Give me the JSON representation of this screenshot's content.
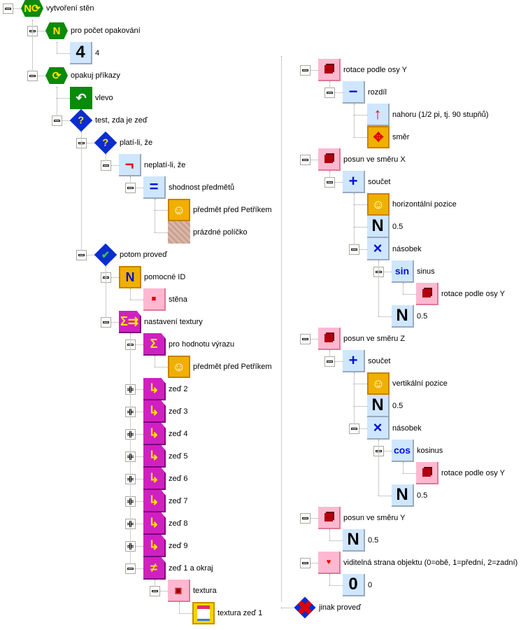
{
  "left_tree": [
    {
      "depth": 0,
      "label": "vytvoření stěn",
      "expander": "minus",
      "icon": "repeat-n-icon",
      "style": "hex",
      "glyph": "N⟳"
    },
    {
      "depth": 1,
      "label": "pro počet opakování",
      "expander": "minus",
      "icon": "number-n-icon",
      "style": "hex",
      "glyph": "N"
    },
    {
      "depth": 2,
      "label": "4",
      "expander": "none",
      "icon": "number-4-icon",
      "style": "num",
      "glyph": "4"
    },
    {
      "depth": 1,
      "label": "opakuj příkazy",
      "expander": "minus",
      "icon": "loop-icon",
      "style": "hex",
      "glyph": "⟳"
    },
    {
      "depth": 2,
      "label": "vlevo",
      "expander": "none",
      "icon": "turn-left-rabbit-icon",
      "style": "rabbitg",
      "glyph": "↶"
    },
    {
      "depth": 2,
      "label": "test, zda je zeď",
      "expander": "minus",
      "icon": "test-diamond-icon",
      "style": "diamond",
      "glyph": "?"
    },
    {
      "depth": 3,
      "label": "platí-li, že",
      "expander": "minus",
      "icon": "condition-icon",
      "style": "diamond",
      "glyph": "?"
    },
    {
      "depth": 4,
      "label": "neplatí-li, že",
      "expander": "minus",
      "icon": "negation-icon",
      "style": "lb",
      "glyph": "¬",
      "color": "#e00000"
    },
    {
      "depth": 5,
      "label": "shodnost předmětů",
      "expander": "minus",
      "icon": "equality-icon",
      "style": "lb",
      "glyph": "="
    },
    {
      "depth": 6,
      "label": "předmět před Petříkem",
      "expander": "none",
      "icon": "rabbit-object-icon",
      "style": "rabbit",
      "glyph": "☺"
    },
    {
      "depth": 6,
      "label": "prázdné políčko",
      "expander": "none",
      "icon": "empty-tile-icon",
      "style": "tile",
      "glyph": ""
    },
    {
      "depth": 3,
      "label": "potom proveď",
      "expander": "minus",
      "icon": "then-check-icon",
      "style": "diamond",
      "glyph": "✔",
      "color": "#30d030"
    },
    {
      "depth": 4,
      "label": "pomocné ID",
      "expander": "minus",
      "icon": "helper-id-icon",
      "style": "rabbit",
      "glyph": "N",
      "color": "#0010c0"
    },
    {
      "depth": 5,
      "label": "stěna",
      "expander": "none",
      "icon": "wall-icon",
      "style": "pink",
      "glyph": "■",
      "color": "#e00000"
    },
    {
      "depth": 4,
      "label": "nastavení textury",
      "expander": "minus",
      "icon": "texture-setting-icon",
      "style": "mag",
      "glyph": "Σ⇉"
    },
    {
      "depth": 5,
      "label": "pro hodnotu výrazu",
      "expander": "minus",
      "icon": "expression-value-icon",
      "style": "mag",
      "glyph": "Σ"
    },
    {
      "depth": 6,
      "label": "předmět před Petříkem",
      "expander": "none",
      "icon": "rabbit-object-icon",
      "style": "rabbit",
      "glyph": "☺"
    },
    {
      "depth": 5,
      "label": "zeď 2",
      "expander": "plus",
      "icon": "branch-arrow-icon",
      "style": "mag",
      "glyph": "↳"
    },
    {
      "depth": 5,
      "label": "zeď 3",
      "expander": "plus",
      "icon": "branch-arrow-icon",
      "style": "mag",
      "glyph": "↳"
    },
    {
      "depth": 5,
      "label": "zeď 4",
      "expander": "plus",
      "icon": "branch-arrow-icon",
      "style": "mag",
      "glyph": "↳"
    },
    {
      "depth": 5,
      "label": "zeď 5",
      "expander": "plus",
      "icon": "branch-arrow-icon",
      "style": "mag",
      "glyph": "↳"
    },
    {
      "depth": 5,
      "label": "zeď 6",
      "expander": "plus",
      "icon": "branch-arrow-icon",
      "style": "mag",
      "glyph": "↳"
    },
    {
      "depth": 5,
      "label": "zeď 7",
      "expander": "plus",
      "icon": "branch-arrow-icon",
      "style": "mag",
      "glyph": "↳"
    },
    {
      "depth": 5,
      "label": "zeď 8",
      "expander": "plus",
      "icon": "branch-arrow-icon",
      "style": "mag",
      "glyph": "↳"
    },
    {
      "depth": 5,
      "label": "zeď 9",
      "expander": "plus",
      "icon": "branch-arrow-icon",
      "style": "mag",
      "glyph": "↳"
    },
    {
      "depth": 5,
      "label": "zeď 1 a okraj",
      "expander": "minus",
      "icon": "not-equal-branch-icon",
      "style": "mag",
      "glyph": "≠"
    },
    {
      "depth": 6,
      "label": "textura",
      "expander": "minus",
      "icon": "texture-icon",
      "style": "pink",
      "glyph": "▣",
      "color": "#a00000"
    },
    {
      "depth": 7,
      "label": "textura zeď 1",
      "expander": "none",
      "icon": "texture-wall-image-icon",
      "style": "yellow",
      "glyph": ""
    }
  ],
  "right_tree": [
    {
      "depth": 0,
      "label": "rotace podle osy Y",
      "expander": "minus",
      "icon": "rotate-y-icon",
      "style": "pink",
      "glyph": ""
    },
    {
      "depth": 1,
      "label": "rozdíl",
      "expander": "minus",
      "icon": "minus-icon",
      "style": "lb",
      "glyph": "−"
    },
    {
      "depth": 2,
      "label": "nahoru (1/2 pi, tj. 90 stupňů)",
      "expander": "none",
      "icon": "clock-up-icon",
      "style": "lb",
      "glyph": "↑",
      "color": "#e00000"
    },
    {
      "depth": 2,
      "label": "směr",
      "expander": "none",
      "icon": "direction-rabbit-icon",
      "style": "rabbit",
      "glyph": "✥",
      "color": "#e00000"
    },
    {
      "depth": 0,
      "label": "posun ve směru X",
      "expander": "minus",
      "icon": "move-x-icon",
      "style": "pink",
      "glyph": ""
    },
    {
      "depth": 1,
      "label": "součet",
      "expander": "minus",
      "icon": "plus-icon",
      "style": "lb",
      "glyph": "+"
    },
    {
      "depth": 2,
      "label": "horizontální pozice",
      "expander": "none",
      "icon": "horizontal-position-icon",
      "style": "rabbit",
      "glyph": "☺"
    },
    {
      "depth": 2,
      "label": "0.5",
      "expander": "none",
      "icon": "number-n-icon",
      "style": "num",
      "glyph": "N"
    },
    {
      "depth": 2,
      "label": "násobek",
      "expander": "minus",
      "icon": "multiply-icon",
      "style": "lb",
      "glyph": "×"
    },
    {
      "depth": 3,
      "label": "sinus",
      "expander": "minus",
      "icon": "sin-icon",
      "style": "lb",
      "glyph": "sin",
      "small": true
    },
    {
      "depth": 4,
      "label": "rotace podle osy Y",
      "expander": "none",
      "icon": "rotate-y-icon",
      "style": "pink",
      "glyph": ""
    },
    {
      "depth": 3,
      "label": "0.5",
      "expander": "none",
      "icon": "number-n-icon",
      "style": "num",
      "glyph": "N"
    },
    {
      "depth": 0,
      "label": "posun ve směru Z",
      "expander": "minus",
      "icon": "move-z-icon",
      "style": "pink",
      "glyph": ""
    },
    {
      "depth": 1,
      "label": "součet",
      "expander": "minus",
      "icon": "plus-icon",
      "style": "lb",
      "glyph": "+"
    },
    {
      "depth": 2,
      "label": "vertikální pozice",
      "expander": "none",
      "icon": "vertical-position-icon",
      "style": "rabbit",
      "glyph": "☺"
    },
    {
      "depth": 2,
      "label": "0.5",
      "expander": "none",
      "icon": "number-n-icon",
      "style": "num",
      "glyph": "N"
    },
    {
      "depth": 2,
      "label": "násobek",
      "expander": "minus",
      "icon": "multiply-icon",
      "style": "lb",
      "glyph": "×"
    },
    {
      "depth": 3,
      "label": "kosinus",
      "expander": "minus",
      "icon": "cos-icon",
      "style": "lb",
      "glyph": "cos",
      "small": true
    },
    {
      "depth": 4,
      "label": "rotace podle osy Y",
      "expander": "none",
      "icon": "rotate-y-icon",
      "style": "pink",
      "glyph": ""
    },
    {
      "depth": 3,
      "label": "0.5",
      "expander": "none",
      "icon": "number-n-icon",
      "style": "num",
      "glyph": "N"
    },
    {
      "depth": 0,
      "label": "posun ve směru Y",
      "expander": "minus",
      "icon": "move-y-icon",
      "style": "pink",
      "glyph": ""
    },
    {
      "depth": 1,
      "label": "0.5",
      "expander": "none",
      "icon": "number-n-icon",
      "style": "num",
      "glyph": "N"
    },
    {
      "depth": 0,
      "label": "viditelná strana objektu (0=obě, 1=přední, 2=zadní)",
      "expander": "minus",
      "icon": "visible-side-icon",
      "style": "pink",
      "glyph": "♥",
      "color": "#e00000"
    },
    {
      "depth": 1,
      "label": "0",
      "expander": "none",
      "icon": "number-0-icon",
      "style": "num",
      "glyph": "0"
    }
  ],
  "else_node": {
    "label": "jinak proveď",
    "icon": "else-cross-icon",
    "glyph": "✖"
  }
}
